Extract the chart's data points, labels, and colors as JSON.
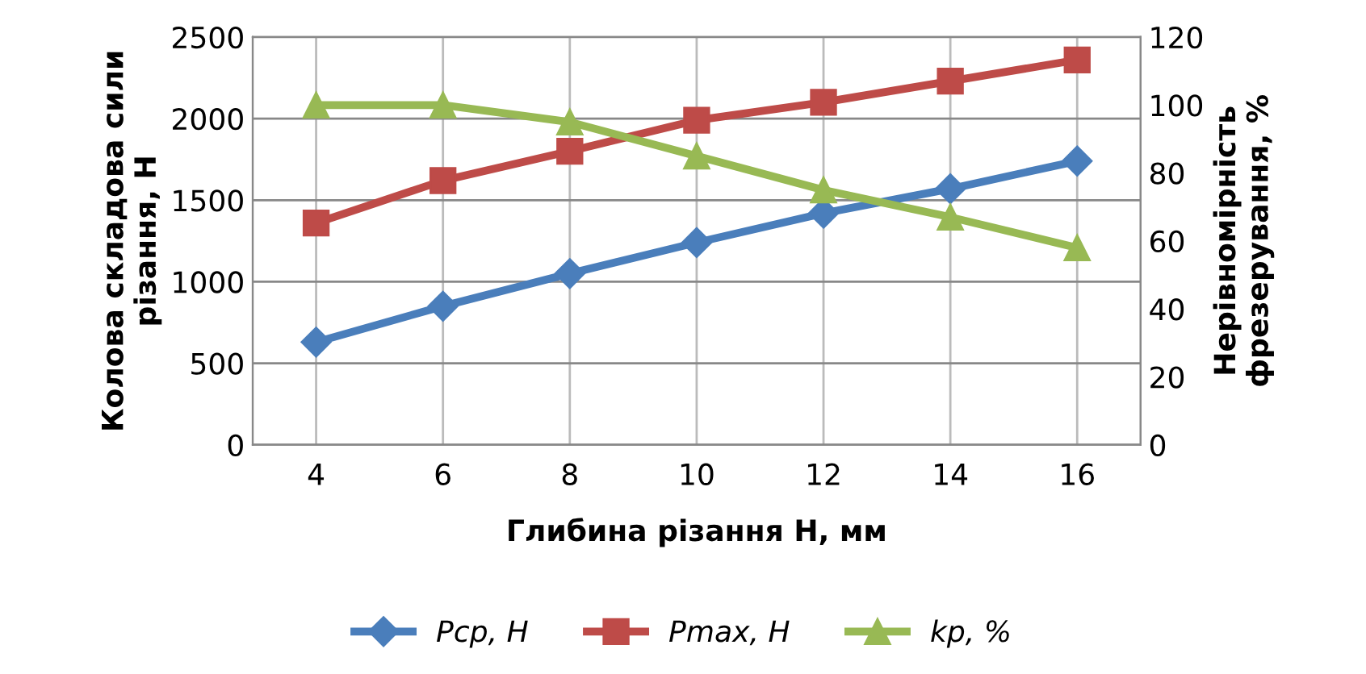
{
  "chart_data": {
    "type": "line",
    "xlabel": "Глибина різання H, мм",
    "ylabel": "Колова складова сили\nрізання, Н",
    "y2label": "Нерівномірність\nфрезерування, %",
    "categories": [
      "4",
      "6",
      "8",
      "10",
      "12",
      "14",
      "16"
    ],
    "series": [
      {
        "name": "Pср, Н",
        "color": "#4a7ebb",
        "marker": "diamond",
        "values": [
          630,
          850,
          1050,
          1240,
          1420,
          1570,
          1740
        ]
      },
      {
        "name": "Pmax, Н",
        "color": "#be4b48",
        "marker": "square",
        "values": [
          1360,
          1620,
          1800,
          1990,
          2100,
          2230,
          2360
        ]
      },
      {
        "name": "kp, %",
        "color": "#98b954",
        "marker": "triangle",
        "axis": "y2",
        "values": [
          100,
          100,
          95,
          85,
          75,
          67,
          58
        ]
      }
    ],
    "ylim": [
      0,
      2500
    ],
    "yticks": [
      0,
      500,
      1000,
      1500,
      2000,
      2500
    ],
    "y2lim": [
      0,
      120
    ],
    "y2ticks": [
      0,
      20,
      40,
      60,
      80,
      100,
      120
    ],
    "grid": true,
    "legend": "bottom",
    "line_style": "solid"
  }
}
